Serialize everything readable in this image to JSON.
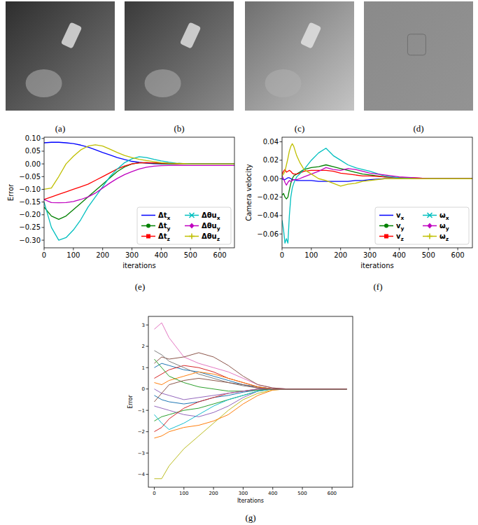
{
  "images": {
    "captions": [
      "(a)",
      "(b)",
      "(c)",
      "(d)"
    ]
  },
  "chart_data": [
    {
      "type": "line",
      "caption": "(e)",
      "x_label": "iterations",
      "y_label": "Error",
      "x": [
        0,
        25,
        50,
        75,
        100,
        125,
        150,
        175,
        200,
        225,
        250,
        275,
        300,
        325,
        350,
        375,
        400,
        425,
        450,
        475,
        500,
        525,
        550,
        575,
        600,
        625,
        650
      ],
      "xlim": [
        0,
        650
      ],
      "xticks": [
        0,
        100,
        200,
        300,
        400,
        500,
        600
      ],
      "ylim": [
        -0.33,
        0.105
      ],
      "yticks": [
        {
          "value": 0.1,
          "label": "0.10"
        },
        {
          "value": 0.05,
          "label": "0.05"
        },
        {
          "value": 0,
          "label": "0.00"
        },
        {
          "value": -0.05,
          "label": "−0.05"
        },
        {
          "value": -0.1,
          "label": "−0.10"
        },
        {
          "value": -0.15,
          "label": "−0.15"
        },
        {
          "value": -0.2,
          "label": "−0.20"
        },
        {
          "value": -0.25,
          "label": "−0.25"
        },
        {
          "value": -0.3,
          "label": "−0.30"
        }
      ],
      "legend": "lower right",
      "series": [
        {
          "name": "Δtx",
          "color": "#0000ff",
          "marker": "none",
          "values": [
            0.083,
            0.085,
            0.085,
            0.083,
            0.08,
            0.074,
            0.066,
            0.056,
            0.045,
            0.035,
            0.025,
            0.017,
            0.01,
            0.006,
            0.003,
            0.001,
            0,
            0,
            0,
            0,
            0,
            0,
            0,
            0,
            0,
            0,
            0
          ]
        },
        {
          "name": "Δty",
          "color": "#008000",
          "marker": "circle",
          "values": [
            -0.17,
            -0.205,
            -0.218,
            -0.205,
            -0.18,
            -0.155,
            -0.13,
            -0.105,
            -0.08,
            -0.055,
            -0.03,
            -0.012,
            0,
            0.004,
            0.005,
            0.003,
            0.001,
            0,
            0,
            0,
            0,
            0,
            0,
            0,
            0,
            0,
            0
          ]
        },
        {
          "name": "Δtz",
          "color": "#ff0000",
          "marker": "square",
          "values": [
            -0.14,
            -0.13,
            -0.12,
            -0.11,
            -0.1,
            -0.09,
            -0.08,
            -0.065,
            -0.05,
            -0.035,
            -0.02,
            -0.008,
            0,
            0.004,
            0.005,
            0.004,
            0.003,
            0.002,
            0.001,
            0,
            0,
            0,
            0,
            0,
            0,
            0,
            0
          ]
        },
        {
          "name": "Δθux",
          "color": "#00bfbf",
          "marker": "x",
          "values": [
            -0.15,
            -0.25,
            -0.3,
            -0.29,
            -0.26,
            -0.22,
            -0.17,
            -0.13,
            -0.09,
            -0.05,
            -0.02,
            0.005,
            0.02,
            0.028,
            0.025,
            0.018,
            0.012,
            0.007,
            0.003,
            0.001,
            0,
            0,
            0,
            0,
            0,
            0,
            0
          ]
        },
        {
          "name": "Δθuy",
          "color": "#bf00bf",
          "marker": "diamond",
          "values": [
            -0.14,
            -0.152,
            -0.153,
            -0.152,
            -0.148,
            -0.14,
            -0.13,
            -0.115,
            -0.095,
            -0.075,
            -0.057,
            -0.042,
            -0.03,
            -0.02,
            -0.013,
            -0.009,
            -0.007,
            -0.006,
            -0.006,
            -0.006,
            -0.006,
            -0.006,
            -0.006,
            -0.006,
            -0.006,
            -0.006,
            -0.006
          ]
        },
        {
          "name": "Δθuz",
          "color": "#bfbf00",
          "marker": "plus",
          "values": [
            -0.1,
            -0.095,
            -0.05,
            0.0,
            0.03,
            0.055,
            0.07,
            0.075,
            0.07,
            0.058,
            0.045,
            0.033,
            0.025,
            0.018,
            0.013,
            0.009,
            0.005,
            0.003,
            0.002,
            0.001,
            0,
            0,
            0,
            0,
            0,
            0,
            0
          ]
        }
      ]
    },
    {
      "type": "line",
      "caption": "(f)",
      "x_label": "iterations",
      "y_label": "Camera velocity",
      "x": [
        0,
        5,
        10,
        15,
        20,
        25,
        30,
        35,
        40,
        50,
        60,
        75,
        100,
        125,
        150,
        175,
        200,
        225,
        250,
        275,
        300,
        350,
        400,
        450,
        500,
        550,
        600,
        650
      ],
      "xlim": [
        0,
        650
      ],
      "xticks": [
        0,
        100,
        200,
        300,
        400,
        500,
        600
      ],
      "ylim": [
        -0.075,
        0.045
      ],
      "yticks": [
        {
          "value": -0.06,
          "label": "−0.06"
        },
        {
          "value": -0.04,
          "label": "−0.04"
        },
        {
          "value": -0.02,
          "label": "−0.02"
        },
        {
          "value": 0,
          "label": "0.00"
        },
        {
          "value": 0.02,
          "label": "0.02"
        },
        {
          "value": 0.04,
          "label": "0.04"
        }
      ],
      "legend": "lower right",
      "series": [
        {
          "name": "vx",
          "color": "#0000ff",
          "marker": "none",
          "values": [
            0,
            -0.001,
            -0.001,
            0,
            0.001,
            0.001,
            0,
            -0.001,
            -0.001,
            -0.002,
            -0.002,
            -0.002,
            -0.002,
            -0.003,
            -0.003,
            -0.003,
            -0.003,
            -0.003,
            -0.002,
            -0.002,
            -0.001,
            0,
            0,
            0,
            0,
            0,
            0,
            0
          ]
        },
        {
          "name": "vy",
          "color": "#008000",
          "marker": "circle",
          "values": [
            -0.018,
            -0.016,
            -0.02,
            -0.022,
            -0.02,
            -0.012,
            -0.005,
            0,
            0.003,
            0.005,
            0.007,
            0.01,
            0.012,
            0.013,
            0.015,
            0.013,
            0.011,
            0.009,
            0.007,
            0.005,
            0.004,
            0.002,
            0.001,
            0,
            0,
            0,
            0,
            0
          ]
        },
        {
          "name": "vz",
          "color": "#ff0000",
          "marker": "square",
          "values": [
            0.005,
            0.008,
            0.01,
            0.007,
            0.008,
            0.009,
            0.008,
            0.006,
            0.005,
            0.005,
            0.006,
            0.008,
            0.009,
            0.009,
            0.009,
            0.008,
            0.006,
            0.005,
            0.004,
            0.003,
            0.003,
            0.002,
            0.001,
            0.001,
            0,
            0,
            0,
            0
          ]
        },
        {
          "name": "ωx",
          "color": "#00bfbf",
          "marker": "x",
          "values": [
            -0.045,
            -0.055,
            -0.07,
            -0.065,
            -0.07,
            -0.04,
            -0.02,
            -0.01,
            -0.005,
            0.002,
            0.005,
            0.01,
            0.02,
            0.028,
            0.033,
            0.025,
            0.02,
            0.015,
            0.012,
            0.01,
            0.008,
            0.003,
            0.001,
            0,
            0,
            0,
            0,
            0
          ]
        },
        {
          "name": "ωy",
          "color": "#bf00bf",
          "marker": "diamond",
          "values": [
            0.003,
            0,
            -0.004,
            -0.007,
            -0.004,
            -0.002,
            -0.003,
            -0.002,
            -0.001,
            -0.001,
            0,
            0.002,
            0.005,
            0.008,
            0.012,
            0.01,
            0.009,
            0.011,
            0.01,
            0.008,
            0.006,
            0.004,
            0.002,
            0.001,
            0,
            0,
            0,
            0
          ]
        },
        {
          "name": "ωz",
          "color": "#bfbf00",
          "marker": "plus",
          "values": [
            0.003,
            0.005,
            0.008,
            0.015,
            0.022,
            0.03,
            0.035,
            0.038,
            0.035,
            0.025,
            0.018,
            0.01,
            0.005,
            0.0,
            -0.002,
            -0.005,
            -0.008,
            -0.006,
            -0.005,
            -0.003,
            -0.002,
            0,
            0,
            0,
            0,
            0,
            0,
            0
          ]
        }
      ]
    },
    {
      "type": "line",
      "caption": "(g)",
      "x_label": "Iterations",
      "y_label": "Error",
      "x": [
        0,
        25,
        50,
        100,
        150,
        200,
        250,
        300,
        350,
        400,
        450,
        500,
        550,
        600,
        650
      ],
      "xlim": [
        -20,
        670
      ],
      "xticks": [
        0,
        100,
        200,
        300,
        400,
        500,
        600
      ],
      "ylim": [
        -4.6,
        3.4
      ],
      "yticks": [
        {
          "value": -4,
          "label": "−4"
        },
        {
          "value": -3,
          "label": "−3"
        },
        {
          "value": -2,
          "label": "−2"
        },
        {
          "value": -1,
          "label": "−1"
        },
        0,
        1,
        2,
        3
      ],
      "series": [
        {
          "color": "#e377c2",
          "values": [
            2.8,
            3.1,
            2.4,
            1.5,
            1.2,
            1.0,
            0.8,
            0.5,
            0.2,
            0.05,
            0,
            0,
            0,
            0,
            0
          ]
        },
        {
          "color": "#bcbd22",
          "values": [
            -4.2,
            -4.2,
            -3.6,
            -2.8,
            -2.2,
            -1.6,
            -1.0,
            -0.5,
            -0.2,
            -0.05,
            0,
            0,
            0,
            0,
            0
          ]
        },
        {
          "color": "#ff7f0e",
          "values": [
            -2.3,
            -2.2,
            -2.0,
            -1.8,
            -1.7,
            -1.5,
            -1.2,
            -0.7,
            -0.3,
            -0.05,
            0,
            0,
            0,
            0,
            0
          ]
        },
        {
          "color": "#8c564b",
          "values": [
            1.2,
            1.5,
            1.4,
            1.5,
            1.7,
            1.5,
            1.1,
            0.6,
            0.2,
            0.05,
            0,
            0,
            0,
            0,
            0
          ]
        },
        {
          "color": "#1f77b4",
          "values": [
            1.0,
            1.2,
            1.1,
            0.9,
            0.8,
            0.6,
            0.4,
            0.2,
            0.1,
            0,
            0,
            0,
            0,
            0,
            0
          ]
        },
        {
          "color": "#2ca02c",
          "values": [
            -1.5,
            -1.3,
            -1.2,
            -1.0,
            -0.9,
            -0.7,
            -0.5,
            -0.3,
            -0.1,
            0,
            0,
            0,
            0,
            0,
            0
          ]
        },
        {
          "color": "#d62728",
          "values": [
            0.5,
            0.7,
            0.9,
            1.1,
            1.0,
            0.8,
            0.5,
            0.3,
            0.1,
            0,
            0,
            0,
            0,
            0,
            0
          ]
        },
        {
          "color": "#9467bd",
          "values": [
            -0.8,
            -0.9,
            -1.0,
            -1.2,
            -1.3,
            -1.1,
            -0.8,
            -0.4,
            -0.1,
            0,
            0,
            0,
            0,
            0,
            0
          ]
        },
        {
          "color": "#7f7f7f",
          "values": [
            1.8,
            1.6,
            1.3,
            1.0,
            0.7,
            0.5,
            0.3,
            0.15,
            0.05,
            0,
            0,
            0,
            0,
            0,
            0
          ]
        },
        {
          "color": "#17becf",
          "values": [
            -1.2,
            -1.6,
            -1.9,
            -1.6,
            -1.2,
            -0.8,
            -0.5,
            -0.3,
            -0.1,
            0,
            0,
            0,
            0,
            0,
            0
          ]
        },
        {
          "color": "#1f77b4",
          "values": [
            -0.3,
            -0.5,
            -0.6,
            -0.7,
            -0.6,
            -0.4,
            -0.3,
            -0.15,
            -0.05,
            0,
            0,
            0,
            0,
            0,
            0
          ]
        },
        {
          "color": "#ff7f0e",
          "values": [
            0.3,
            0.2,
            0.4,
            0.6,
            0.8,
            0.7,
            0.5,
            0.3,
            0.1,
            0,
            0,
            0,
            0,
            0,
            0
          ]
        },
        {
          "color": "#2ca02c",
          "values": [
            1.4,
            1.0,
            0.6,
            0.3,
            0.1,
            0,
            -0.1,
            -0.1,
            -0.05,
            0,
            0,
            0,
            0,
            0,
            0
          ]
        },
        {
          "color": "#d62728",
          "values": [
            -2.0,
            -1.8,
            -1.4,
            -0.9,
            -0.6,
            -0.4,
            -0.2,
            -0.1,
            0,
            0,
            0,
            0,
            0,
            0,
            0
          ]
        },
        {
          "color": "#9467bd",
          "values": [
            0.0,
            -0.2,
            -0.3,
            -0.5,
            -0.4,
            -0.3,
            -0.2,
            -0.1,
            0,
            0,
            0,
            0,
            0,
            0,
            0
          ]
        },
        {
          "color": "#8c564b",
          "values": [
            -0.6,
            -0.2,
            0.2,
            0.4,
            0.5,
            0.4,
            0.3,
            0.2,
            0.05,
            0,
            0,
            0,
            0,
            0,
            0
          ]
        }
      ]
    }
  ]
}
